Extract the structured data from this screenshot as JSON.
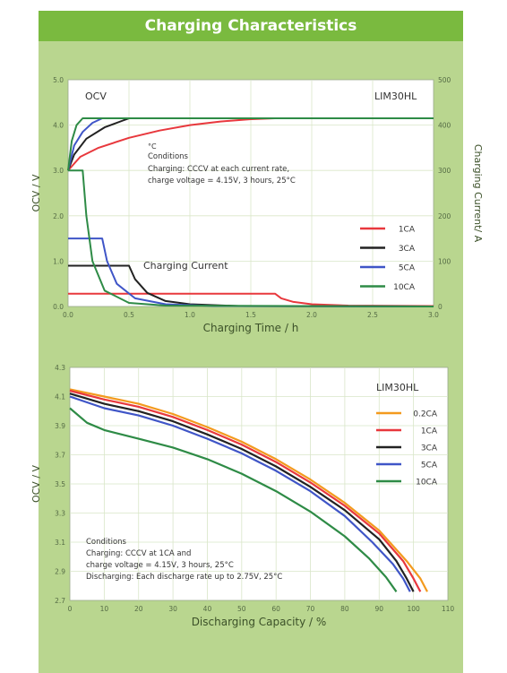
{
  "header": {
    "title": "Charging Characteristics"
  },
  "colors": {
    "header_bg": "#7aba3f",
    "panel_bg": "#b9d68f",
    "plot_bg": "#ffffff",
    "grid": "#d9e6c8",
    "rate_0_2CA": "#f39a1e",
    "rate_1CA": "#e8383d",
    "rate_3CA": "#222222",
    "rate_5CA": "#3f55c7",
    "rate_10CA": "#2e8b46"
  },
  "chart_data": [
    {
      "type": "line",
      "title": "",
      "top_left_label": "OCV",
      "top_right_label": "LIM30HL",
      "xlabel": "Charging Time / h",
      "ylabel": "OCV / V",
      "y2label": "Charging Current/ A",
      "xlim": [
        0,
        3.0
      ],
      "ylim": [
        0,
        5.0
      ],
      "y2lim": [
        0,
        500
      ],
      "xticks": [
        "0.0",
        "0.5",
        "1.0",
        "1.5",
        "2.0",
        "2.5",
        "3.0"
      ],
      "yticks": [
        "0.0",
        "1.0",
        "2.0",
        "3.0",
        "4.0",
        "5.0"
      ],
      "y2ticks": [
        "0",
        "100",
        "200",
        "300",
        "400",
        "500"
      ],
      "grid": true,
      "legend_position": "right-middle",
      "annotations": {
        "unit_note": "°C",
        "conditions_title": "Conditions",
        "conditions_line1": "Charging: CCCV at each current rate,",
        "conditions_line2": "charge voltage = 4.15V, 3 hours, 25°C",
        "current_label": "Charging Current"
      },
      "series": [
        {
          "name": "1CA",
          "color_key": "rate_1CA",
          "voltage": [
            [
              0,
              3.0
            ],
            [
              0.1,
              3.3
            ],
            [
              0.25,
              3.5
            ],
            [
              0.5,
              3.72
            ],
            [
              0.75,
              3.88
            ],
            [
              1.0,
              4.0
            ],
            [
              1.25,
              4.08
            ],
            [
              1.5,
              4.13
            ],
            [
              1.7,
              4.15
            ],
            [
              3.0,
              4.15
            ]
          ],
          "current": [
            [
              0,
              28
            ],
            [
              1.7,
              28
            ],
            [
              1.75,
              18
            ],
            [
              1.85,
              10
            ],
            [
              2.0,
              5
            ],
            [
              2.3,
              2
            ],
            [
              3.0,
              1
            ]
          ]
        },
        {
          "name": "3CA",
          "color_key": "rate_3CA",
          "voltage": [
            [
              0,
              3.0
            ],
            [
              0.05,
              3.35
            ],
            [
              0.15,
              3.7
            ],
            [
              0.3,
              3.95
            ],
            [
              0.45,
              4.1
            ],
            [
              0.5,
              4.15
            ],
            [
              3.0,
              4.15
            ]
          ],
          "current": [
            [
              0,
              90
            ],
            [
              0.5,
              90
            ],
            [
              0.55,
              60
            ],
            [
              0.65,
              30
            ],
            [
              0.8,
              12
            ],
            [
              1.0,
              5
            ],
            [
              1.4,
              1
            ],
            [
              3.0,
              0
            ]
          ]
        },
        {
          "name": "5CA",
          "color_key": "rate_5CA",
          "voltage": [
            [
              0,
              3.0
            ],
            [
              0.05,
              3.55
            ],
            [
              0.12,
              3.85
            ],
            [
              0.2,
              4.05
            ],
            [
              0.28,
              4.15
            ],
            [
              3.0,
              4.15
            ]
          ],
          "current": [
            [
              0,
              150
            ],
            [
              0.28,
              150
            ],
            [
              0.32,
              100
            ],
            [
              0.4,
              50
            ],
            [
              0.55,
              18
            ],
            [
              0.8,
              5
            ],
            [
              1.2,
              1
            ],
            [
              3.0,
              0
            ]
          ]
        },
        {
          "name": "10CA",
          "color_key": "rate_10CA",
          "voltage": [
            [
              0,
              3.0
            ],
            [
              0.03,
              3.65
            ],
            [
              0.07,
              4.0
            ],
            [
              0.12,
              4.15
            ],
            [
              3.0,
              4.15
            ]
          ],
          "current": [
            [
              0,
              300
            ],
            [
              0.12,
              300
            ],
            [
              0.15,
              200
            ],
            [
              0.2,
              100
            ],
            [
              0.3,
              35
            ],
            [
              0.5,
              8
            ],
            [
              0.8,
              2
            ],
            [
              3.0,
              0
            ]
          ]
        }
      ]
    },
    {
      "type": "line",
      "title": "",
      "top_right_label": "LIM30HL",
      "xlabel": "Discharging Capacity / %",
      "ylabel": "OCV / V",
      "xlim": [
        0,
        110
      ],
      "ylim": [
        2.7,
        4.3
      ],
      "xticks": [
        "0",
        "10",
        "20",
        "30",
        "40",
        "50",
        "60",
        "70",
        "80",
        "90",
        "100",
        "110"
      ],
      "yticks": [
        "2.7",
        "2.9",
        "3.1",
        "3.3",
        "3.5",
        "3.7",
        "3.9",
        "4.1",
        "4.3"
      ],
      "grid": true,
      "legend_position": "top-right",
      "annotations": {
        "conditions_title": "Conditions",
        "conditions_line1": "Charging: CCCV at 1CA and",
        "conditions_line2": "charge voltage = 4.15V, 3 hours, 25°C",
        "conditions_line3": "Discharging: Each discharge rate up to 2.75V, 25°C"
      },
      "series": [
        {
          "name": "0.2CA",
          "color_key": "rate_0_2CA",
          "points": [
            [
              0,
              4.15
            ],
            [
              10,
              4.1
            ],
            [
              20,
              4.05
            ],
            [
              30,
              3.98
            ],
            [
              40,
              3.89
            ],
            [
              50,
              3.79
            ],
            [
              60,
              3.67
            ],
            [
              70,
              3.53
            ],
            [
              80,
              3.37
            ],
            [
              90,
              3.18
            ],
            [
              98,
              2.97
            ],
            [
              102,
              2.85
            ],
            [
              104,
              2.76
            ]
          ]
        },
        {
          "name": "1CA",
          "color_key": "rate_1CA",
          "points": [
            [
              0,
              4.14
            ],
            [
              10,
              4.08
            ],
            [
              20,
              4.03
            ],
            [
              30,
              3.96
            ],
            [
              40,
              3.87
            ],
            [
              50,
              3.77
            ],
            [
              60,
              3.65
            ],
            [
              70,
              3.51
            ],
            [
              80,
              3.35
            ],
            [
              90,
              3.16
            ],
            [
              97,
              2.97
            ],
            [
              100,
              2.85
            ],
            [
              102,
              2.76
            ]
          ]
        },
        {
          "name": "3CA",
          "color_key": "rate_3CA",
          "points": [
            [
              0,
              4.12
            ],
            [
              10,
              4.05
            ],
            [
              20,
              4.0
            ],
            [
              30,
              3.93
            ],
            [
              40,
              3.84
            ],
            [
              50,
              3.74
            ],
            [
              60,
              3.62
            ],
            [
              70,
              3.48
            ],
            [
              80,
              3.32
            ],
            [
              90,
              3.12
            ],
            [
              95,
              2.97
            ],
            [
              98,
              2.85
            ],
            [
              100,
              2.76
            ]
          ]
        },
        {
          "name": "5CA",
          "color_key": "rate_5CA",
          "points": [
            [
              0,
              4.1
            ],
            [
              10,
              4.02
            ],
            [
              20,
              3.97
            ],
            [
              30,
              3.9
            ],
            [
              40,
              3.81
            ],
            [
              50,
              3.71
            ],
            [
              60,
              3.59
            ],
            [
              70,
              3.45
            ],
            [
              80,
              3.28
            ],
            [
              88,
              3.1
            ],
            [
              94,
              2.95
            ],
            [
              97,
              2.85
            ],
            [
              99,
              2.76
            ]
          ]
        },
        {
          "name": "10CA",
          "color_key": "rate_10CA",
          "points": [
            [
              0,
              4.02
            ],
            [
              5,
              3.92
            ],
            [
              10,
              3.87
            ],
            [
              20,
              3.81
            ],
            [
              30,
              3.75
            ],
            [
              40,
              3.67
            ],
            [
              50,
              3.57
            ],
            [
              60,
              3.45
            ],
            [
              70,
              3.31
            ],
            [
              80,
              3.14
            ],
            [
              87,
              2.99
            ],
            [
              92,
              2.86
            ],
            [
              95,
              2.76
            ]
          ]
        }
      ]
    }
  ]
}
